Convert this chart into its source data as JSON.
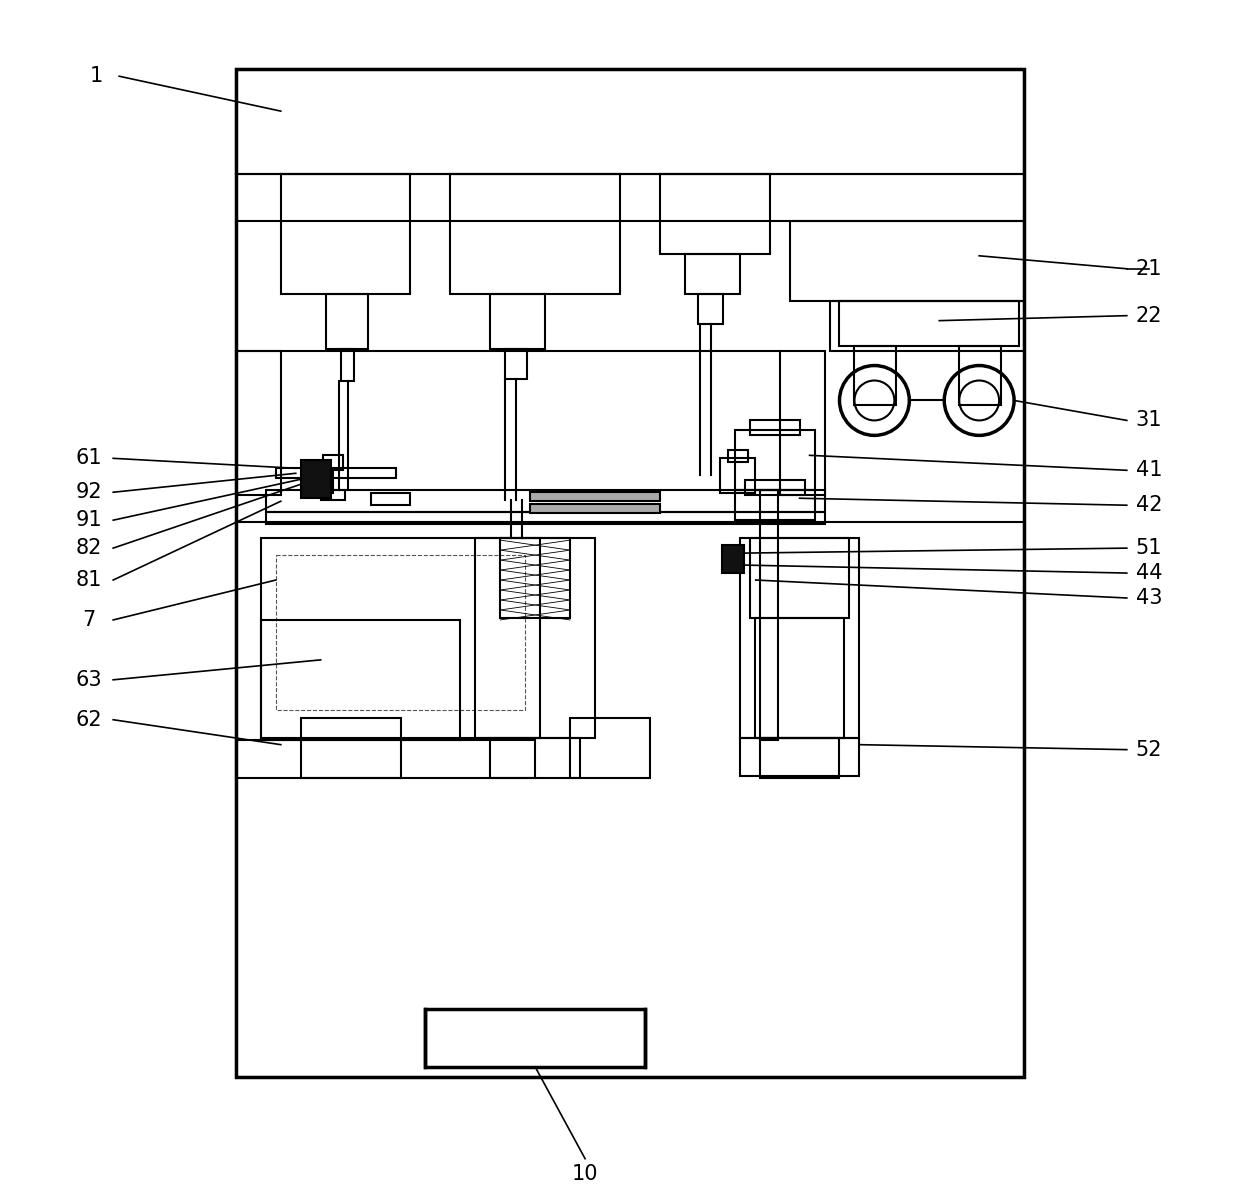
{
  "bg_color": "#ffffff",
  "lc": "#000000",
  "lw": 1.5,
  "tlw": 2.5,
  "fig_w": 12.4,
  "fig_h": 11.98
}
